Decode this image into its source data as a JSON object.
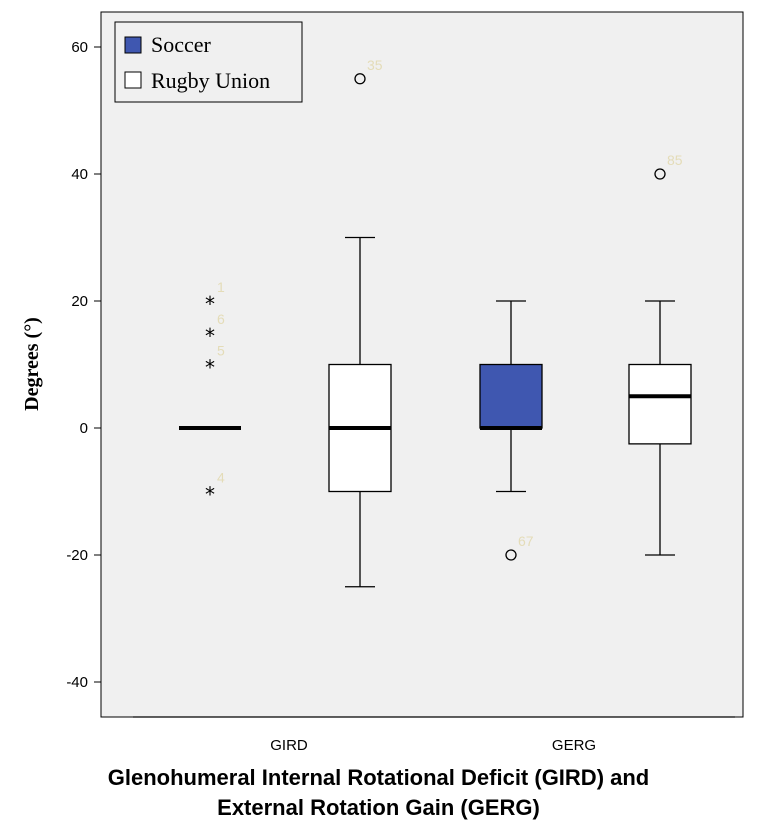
{
  "chart_data": {
    "type": "box",
    "xlabel_lines": [
      "Glenohumeral Internal Rotational Deficit (GIRD) and",
      "External Rotation Gain (GERG)"
    ],
    "ylabel": "Degrees (°)",
    "ylim": [
      -45,
      65
    ],
    "yticks": [
      60,
      40,
      20,
      0,
      -20,
      -40
    ],
    "categories": [
      "GIRD",
      "GERG"
    ],
    "legend": {
      "position": "top-left",
      "entries": [
        {
          "name": "Soccer",
          "color": "#3f57b0"
        },
        {
          "name": "Rugby Union",
          "color": "#ffffff"
        }
      ]
    },
    "grid": false,
    "background": "#f0f0f0",
    "boxes": [
      {
        "category": "GIRD",
        "series": "Soccer",
        "min": 0,
        "q1": 0,
        "median": 0,
        "q3": 0,
        "max": 0,
        "outliers": [
          {
            "value": 20,
            "label": "1",
            "marker": "star"
          },
          {
            "value": 15,
            "label": "6",
            "marker": "star"
          },
          {
            "value": 10,
            "label": "5",
            "marker": "star"
          },
          {
            "value": -10,
            "label": "4",
            "marker": "star"
          }
        ]
      },
      {
        "category": "GIRD",
        "series": "Rugby Union",
        "min": -25,
        "q1": -10,
        "median": 0,
        "q3": 10,
        "max": 30,
        "outliers": [
          {
            "value": 55,
            "label": "35",
            "marker": "circle"
          }
        ]
      },
      {
        "category": "GERG",
        "series": "Soccer",
        "min": -10,
        "q1": 0,
        "median": 0,
        "q3": 10,
        "max": 20,
        "outliers": [
          {
            "value": -20,
            "label": "67",
            "marker": "circle"
          }
        ]
      },
      {
        "category": "GERG",
        "series": "Rugby Union",
        "min": -20,
        "q1": -2.5,
        "median": 5,
        "q3": 10,
        "max": 20,
        "outliers": [
          {
            "value": 40,
            "label": "85",
            "marker": "circle"
          }
        ]
      }
    ]
  }
}
